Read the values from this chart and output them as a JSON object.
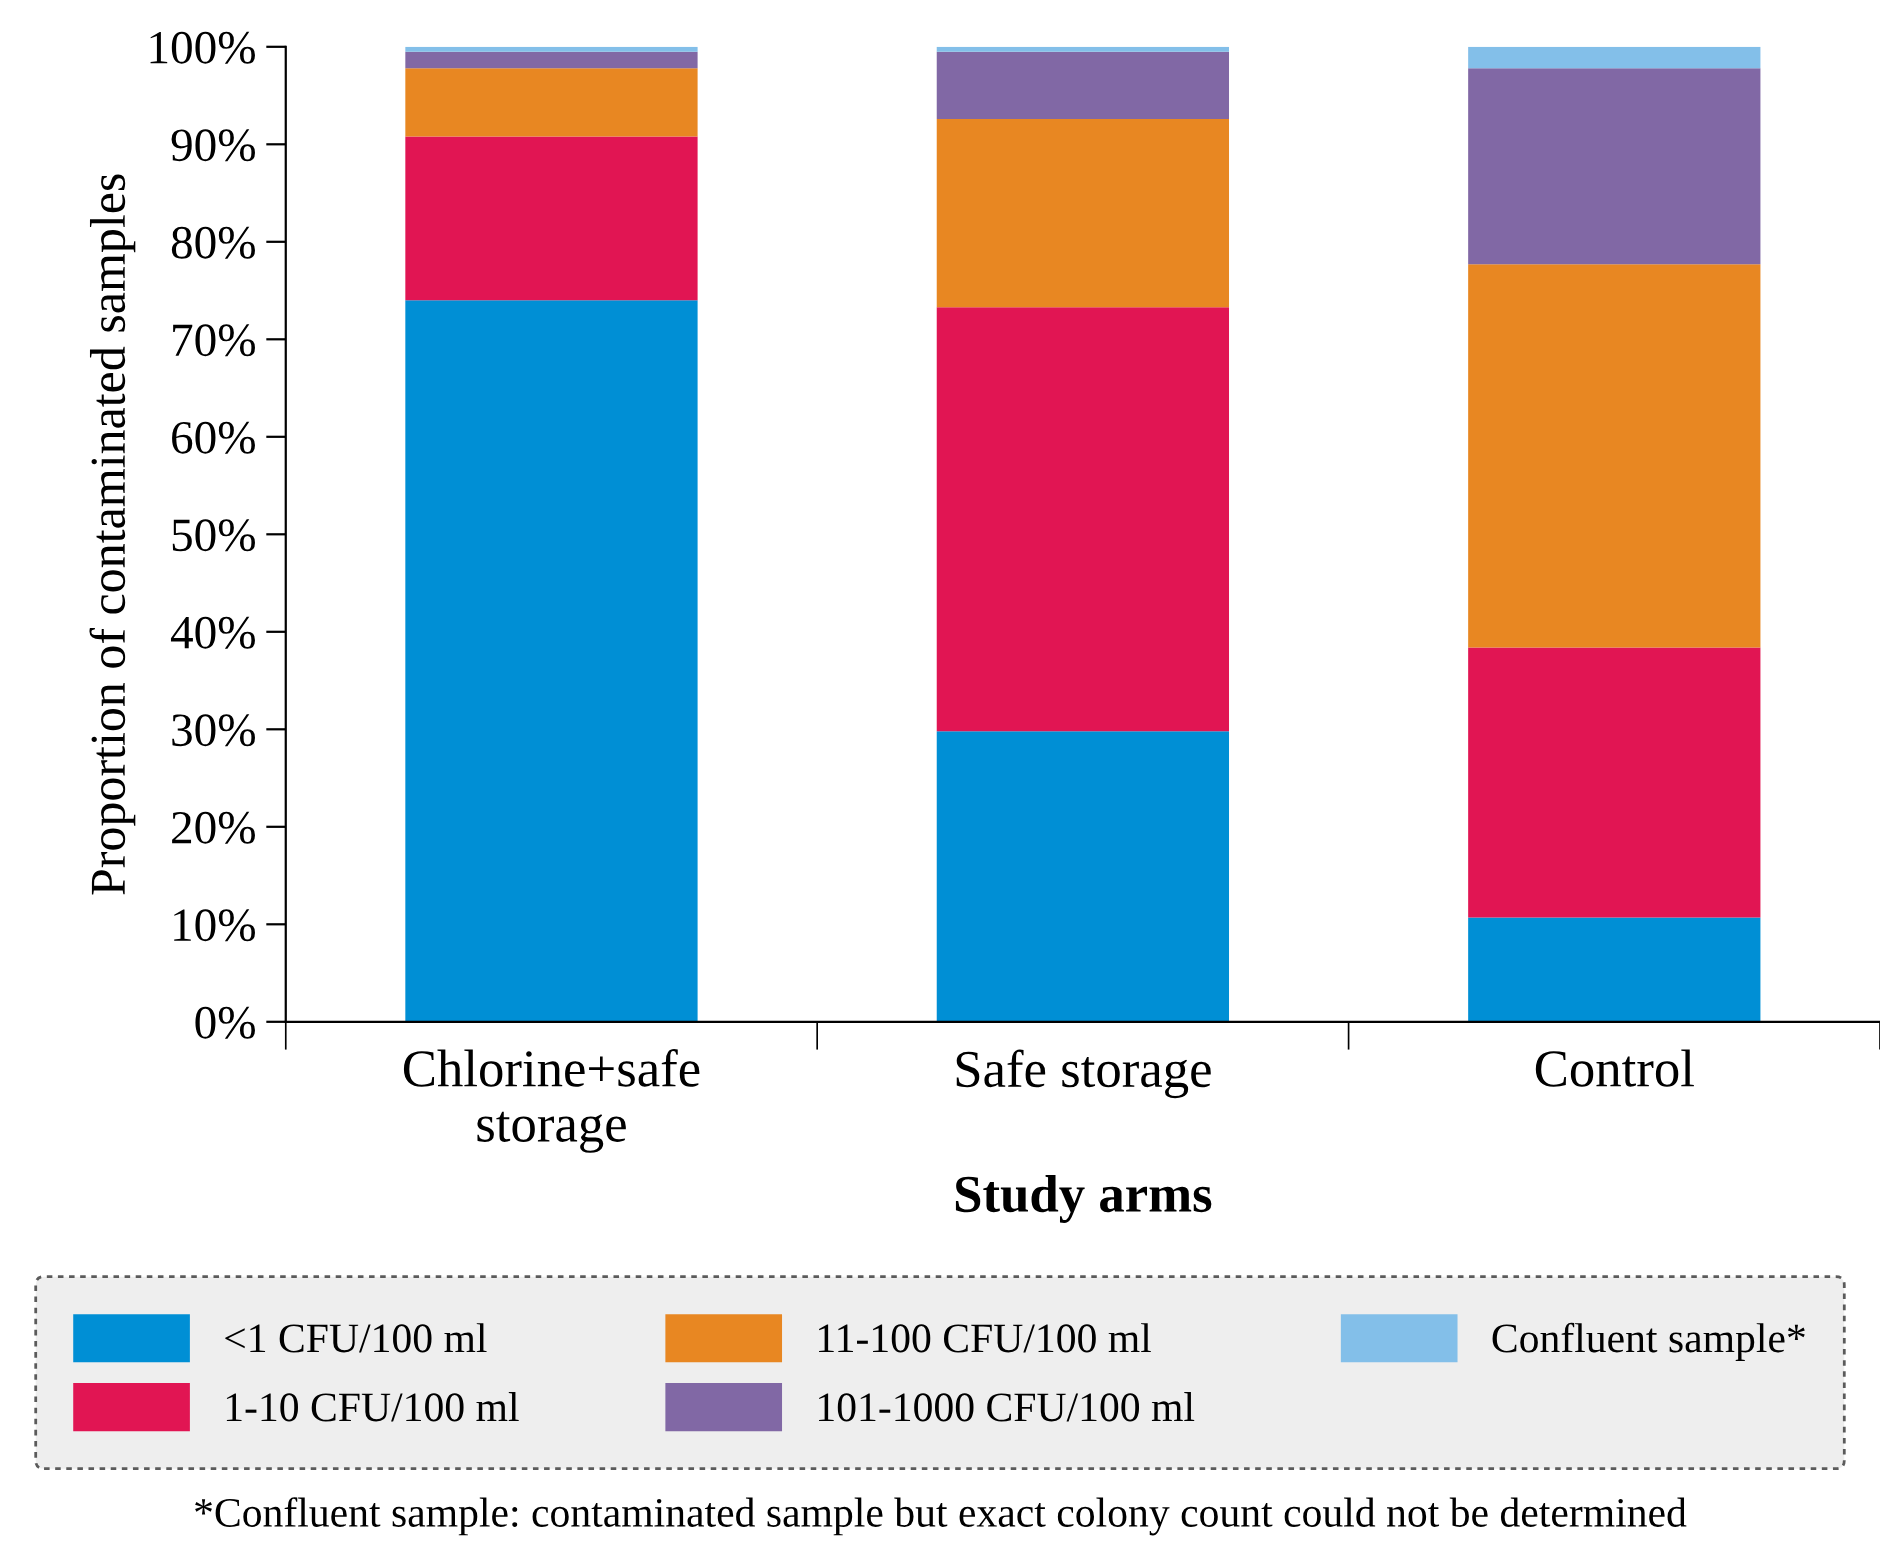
{
  "chart_data": {
    "type": "bar",
    "stacked": true,
    "categories": [
      "Chlorine+safe\nstorage",
      "Safe storage",
      "Control"
    ],
    "series": [
      {
        "name": "<1 CFU/100 ml",
        "color": "#008fd5",
        "values": [
          74,
          29.8,
          10.7
        ]
      },
      {
        "name": "1-10 CFU/100 ml",
        "color": "#e11553",
        "values": [
          16.8,
          43.5,
          27.7
        ]
      },
      {
        "name": "11-100 CFU/100 ml",
        "color": "#e88722",
        "values": [
          7,
          19.3,
          39.3
        ]
      },
      {
        "name": "101-1000 CFU/100 ml",
        "color": "#8168a5",
        "values": [
          1.7,
          6.9,
          20.1
        ]
      },
      {
        "name": "Confluent sample*",
        "color": "#83bfe9",
        "values": [
          0.5,
          0.5,
          2.2
        ]
      }
    ],
    "xlabel": "Study arms",
    "ylabel": "Proportion of contaminated samples",
    "ylim": [
      0,
      100
    ],
    "yticks": [
      {
        "value": 0,
        "label": "0%"
      },
      {
        "value": 10,
        "label": "10%"
      },
      {
        "value": 20,
        "label": "20%"
      },
      {
        "value": 30,
        "label": "30%"
      },
      {
        "value": 40,
        "label": "40%"
      },
      {
        "value": 50,
        "label": "50%"
      },
      {
        "value": 60,
        "label": "60%"
      },
      {
        "value": 70,
        "label": "70%"
      },
      {
        "value": 80,
        "label": "80%"
      },
      {
        "value": 90,
        "label": "90%"
      },
      {
        "value": 100,
        "label": "100%"
      }
    ],
    "grid": false,
    "legend": "bottom",
    "annotations": [
      "*Confluent sample: contaminated sample but exact colony count could not be determined"
    ]
  }
}
